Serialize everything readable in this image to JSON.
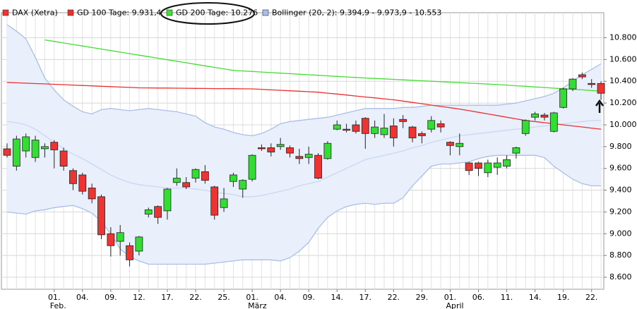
{
  "chart_data": {
    "type": "candlestick",
    "name": "DAX (Xetra)",
    "up_color": "#33dd33",
    "down_color": "#ee3333",
    "categories": [
      null,
      null,
      null,
      null,
      null,
      {
        "day": "01.",
        "month": "Feb."
      },
      null,
      null,
      "04.",
      null,
      null,
      "09.",
      null,
      null,
      "12.",
      null,
      null,
      "17.",
      null,
      null,
      "22.",
      null,
      null,
      "25.",
      null,
      null,
      {
        "day": "01.",
        "month": "März"
      },
      null,
      null,
      "04.",
      null,
      null,
      "09.",
      null,
      null,
      "14.",
      null,
      null,
      "17.",
      null,
      null,
      "22.",
      null,
      null,
      "29.",
      null,
      null,
      {
        "day": "01.",
        "month": "April"
      },
      null,
      null,
      "06.",
      null,
      null,
      "11.",
      null,
      null,
      "14.",
      null,
      null,
      "19.",
      null,
      null,
      "22.",
      null
    ],
    "open": [
      9780,
      9620,
      9760,
      9700,
      9780,
      9840,
      9760,
      9580,
      9540,
      9420,
      9340,
      9000,
      8930,
      8890,
      8840,
      9180,
      9250,
      9210,
      9470,
      9470,
      9510,
      9570,
      9430,
      9240,
      9480,
      9410,
      9500,
      9790,
      9790,
      9800,
      9790,
      9710,
      9700,
      9720,
      9690,
      9960,
      9960,
      10000,
      10060,
      9920,
      9910,
      9990,
      10050,
      9980,
      9920,
      9960,
      10010,
      9840,
      9800,
      9650,
      9650,
      9560,
      9610,
      9620,
      9740,
      9920,
      10070,
      10090,
      9940,
      10160,
      10330,
      10460,
      10380,
      10380
    ],
    "high": [
      9830,
      9900,
      9920,
      9900,
      9830,
      9860,
      9790,
      9600,
      9560,
      9460,
      9360,
      9060,
      9080,
      8920,
      8980,
      9240,
      9260,
      9420,
      9600,
      9520,
      9600,
      9630,
      9440,
      9420,
      9560,
      9500,
      9730,
      9820,
      9830,
      9880,
      9810,
      9780,
      9800,
      9740,
      9850,
      10040,
      10010,
      10040,
      10070,
      10040,
      10100,
      10060,
      10090,
      9990,
      9940,
      10080,
      10040,
      9850,
      9920,
      9660,
      9660,
      9680,
      9700,
      9720,
      9800,
      10050,
      10120,
      10110,
      10120,
      10340,
      10430,
      10480,
      10420,
      10400
    ],
    "low": [
      9700,
      9580,
      9700,
      9660,
      9700,
      9600,
      9580,
      9400,
      9360,
      9280,
      8950,
      8790,
      8800,
      8700,
      8800,
      9150,
      9090,
      9130,
      9440,
      9410,
      9470,
      9460,
      9130,
      9200,
      9430,
      9330,
      9480,
      9760,
      9710,
      9770,
      9700,
      9640,
      9640,
      9500,
      9680,
      9950,
      9930,
      9920,
      9780,
      9880,
      9880,
      9800,
      9970,
      9840,
      9830,
      9930,
      9930,
      9720,
      9720,
      9540,
      9530,
      9520,
      9540,
      9600,
      9690,
      9900,
      10040,
      10040,
      9930,
      10150,
      10310,
      10420,
      10340,
      10230
    ],
    "close": [
      9720,
      9870,
      9890,
      9860,
      9800,
      9770,
      9620,
      9460,
      9390,
      9320,
      8990,
      8890,
      9010,
      8760,
      8970,
      9220,
      9150,
      9410,
      9510,
      9430,
      9590,
      9490,
      9170,
      9320,
      9540,
      9490,
      9720,
      9780,
      9750,
      9820,
      9740,
      9690,
      9730,
      9510,
      9830,
      10000,
      9950,
      9940,
      9920,
      9980,
      9970,
      9880,
      10030,
      9880,
      9900,
      10040,
      9980,
      9810,
      9830,
      9580,
      9600,
      9650,
      9650,
      9680,
      9790,
      10040,
      10100,
      10070,
      10110,
      10330,
      10420,
      10440,
      10370,
      10290
    ],
    "series": [
      {
        "name": "GD 100 Tage: 9.931,4",
        "color": "#e83030",
        "values": [
          10390,
          10386,
          10383,
          10379,
          10376,
          10372,
          10369,
          10365,
          10361,
          10358,
          10354,
          10351,
          10347,
          10344,
          10340,
          10339,
          10338,
          10338,
          10337,
          10336,
          10335,
          10334,
          10333,
          10333,
          10332,
          10331,
          10330,
          10326,
          10321,
          10317,
          10313,
          10309,
          10304,
          10300,
          10291,
          10283,
          10274,
          10265,
          10256,
          10248,
          10239,
          10230,
          10218,
          10206,
          10194,
          10181,
          10169,
          10157,
          10145,
          10130,
          10115,
          10100,
          10085,
          10070,
          10055,
          10040,
          10030,
          10020,
          10010,
          10000,
          9990,
          9980,
          9970,
          9960
        ]
      },
      {
        "name": "GD 200 Tage: 10.276",
        "color": "#44dd33",
        "values": [
          null,
          null,
          null,
          null,
          10780,
          10766,
          10752,
          10738,
          10724,
          10710,
          10696,
          10682,
          10668,
          10654,
          10640,
          10626,
          10612,
          10598,
          10584,
          10570,
          10556,
          10542,
          10528,
          10514,
          10500,
          10495,
          10490,
          10485,
          10480,
          10475,
          10470,
          10465,
          10460,
          10455,
          10450,
          10445,
          10440,
          10435,
          10430,
          10426,
          10422,
          10418,
          10413,
          10409,
          10405,
          10400,
          10396,
          10392,
          10387,
          10383,
          10379,
          10374,
          10370,
          10365,
          10359,
          10354,
          10348,
          10343,
          10337,
          10332,
          10326,
          10321,
          10315,
          10310
        ]
      }
    ],
    "bollinger": {
      "name": "Bollinger (20, 2): 9.394,9 - 9.973,9 - 10.553",
      "color": "#a9bfe6",
      "fill": "#e9f0fb",
      "middle_color": "#c9d8f0",
      "upper": [
        10920,
        10860,
        10790,
        10620,
        10430,
        10320,
        10230,
        10170,
        10120,
        10100,
        10140,
        10150,
        10140,
        10130,
        10140,
        10150,
        10140,
        10130,
        10120,
        10100,
        10080,
        10020,
        9980,
        9960,
        9930,
        9910,
        9900,
        9920,
        9960,
        10010,
        10030,
        10040,
        10050,
        10060,
        10070,
        10090,
        10110,
        10130,
        10150,
        10150,
        10150,
        10150,
        10160,
        10160,
        10170,
        10180,
        10180,
        10180,
        10180,
        10180,
        10180,
        10180,
        10180,
        10190,
        10200,
        10220,
        10240,
        10260,
        10290,
        10340,
        10400,
        10460,
        10510,
        10560
      ],
      "middle": [
        10030,
        10020,
        10000,
        9960,
        9900,
        9840,
        9780,
        9730,
        9690,
        9640,
        9590,
        9540,
        9500,
        9470,
        9450,
        9440,
        9430,
        9420,
        9420,
        9420,
        9410,
        9400,
        9380,
        9370,
        9360,
        9340,
        9340,
        9350,
        9370,
        9390,
        9410,
        9440,
        9460,
        9480,
        9520,
        9560,
        9600,
        9640,
        9680,
        9700,
        9720,
        9740,
        9760,
        9790,
        9810,
        9840,
        9860,
        9880,
        9900,
        9910,
        9920,
        9930,
        9940,
        9950,
        9960,
        9970,
        9980,
        9990,
        10000,
        10010,
        10020,
        10030,
        10040,
        10040
      ],
      "lower": [
        9200,
        9190,
        9180,
        9210,
        9220,
        9240,
        9250,
        9260,
        9230,
        9190,
        9110,
        9000,
        8860,
        8790,
        8750,
        8720,
        8720,
        8720,
        8720,
        8720,
        8720,
        8720,
        8730,
        8740,
        8750,
        8760,
        8760,
        8760,
        8760,
        8750,
        8780,
        8840,
        8920,
        9050,
        9150,
        9210,
        9250,
        9270,
        9280,
        9270,
        9280,
        9280,
        9330,
        9440,
        9530,
        9620,
        9640,
        9640,
        9650,
        9660,
        9690,
        9710,
        9720,
        9720,
        9720,
        9720,
        9720,
        9700,
        9620,
        9560,
        9500,
        9460,
        9440,
        9440
      ]
    },
    "ylim": [
      8490,
      11030
    ],
    "yticks": [
      {
        "value": 8600,
        "label": "8.600"
      },
      {
        "value": 8800,
        "label": "8.800"
      },
      {
        "value": 9000,
        "label": "9.000"
      },
      {
        "value": 9200,
        "label": "9.200"
      },
      {
        "value": 9400,
        "label": "9.400"
      },
      {
        "value": 9600,
        "label": "9.600"
      },
      {
        "value": 9800,
        "label": "9.800"
      },
      {
        "value": 10000,
        "label": "10.000"
      },
      {
        "value": 10200,
        "label": "10.200"
      },
      {
        "value": 10400,
        "label": "10.400"
      },
      {
        "value": 10600,
        "label": "10.600"
      },
      {
        "value": 10800,
        "label": "10.800"
      }
    ],
    "grid": true
  }
}
